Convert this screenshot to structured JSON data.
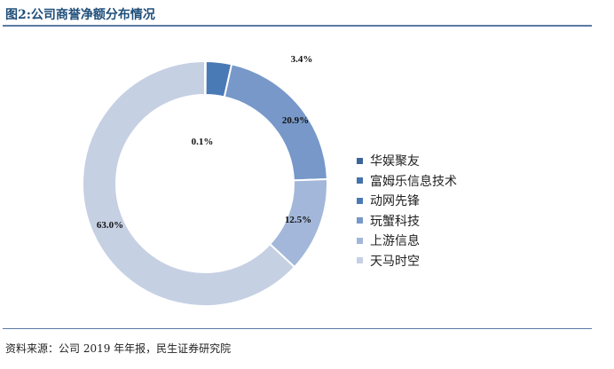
{
  "title": "图2:公司商誉净额分布情况",
  "source": "资料来源：公司 2019 年年报，民生证券研究院",
  "chart_data": {
    "type": "pie",
    "variant": "donut",
    "title": "图2:公司商誉净额分布情况",
    "unit": "%",
    "legend_position": "right",
    "categories": [
      "华娱聚友",
      "富姆乐信息技术",
      "动网先锋",
      "玩蟹科技",
      "上游信息",
      "天马时空"
    ],
    "values": [
      0.0,
      0.1,
      3.4,
      20.9,
      12.5,
      63.0
    ],
    "data_labels": [
      "",
      "0.1%",
      "3.4%",
      "20.9%",
      "12.5%",
      "63.0%"
    ],
    "colors": [
      "#3b659c",
      "#4572aa",
      "#4a7ab5",
      "#7798c9",
      "#a2b7d9",
      "#c5d0e3"
    ]
  }
}
